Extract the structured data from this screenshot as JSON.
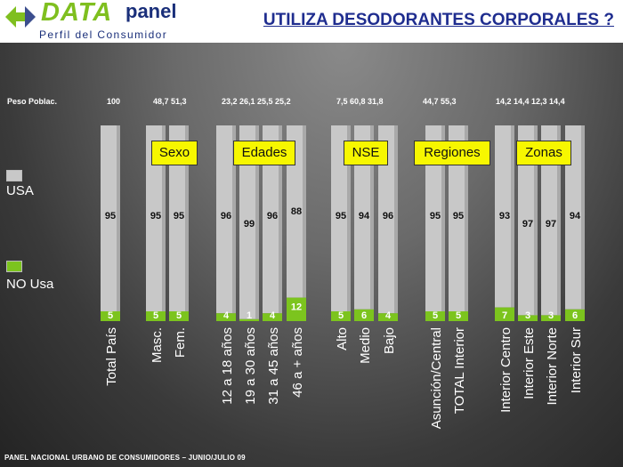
{
  "header": {
    "logo_data": "DATA",
    "logo_panel": "panel",
    "logo_sub": "Perfil del Consumidor",
    "title": "UTILIZA DESODORANTES CORPORALES ?"
  },
  "peso": {
    "label": "Peso Poblac.",
    "groups": [
      "100",
      "48,7 51,3",
      "23,2  26,1 25,5 25,2",
      "7,5  60,8 31,8",
      "44,7 55,3",
      "14,2 14,4 12,3 14,4"
    ]
  },
  "legend": {
    "usa": "USA",
    "no_usa": "NO Usa",
    "usa_color": "#c8c8c8",
    "no_usa_color": "#7cc41e"
  },
  "groups": [
    "Sexo",
    "Edades",
    "NSE",
    "Regiones",
    "Zonas"
  ],
  "footer": "PANEL NACIONAL URBANO DE CONSUMIDORES – JUNIO/JULIO 09",
  "chart_data": {
    "type": "bar",
    "stacked": true,
    "categories": [
      "Total País",
      "Masc.",
      "Fem.",
      "12 a 18 años",
      "19 a 30 años",
      "31 a 45 años",
      "46 a + años",
      "Alto",
      "Medio",
      "Bajo",
      "Asunción/Central",
      "TOTAL Interior",
      "Interior Centro",
      "Interior Este",
      "Interior Norte",
      "Interior Sur"
    ],
    "series": [
      {
        "name": "NO Usa",
        "values": [
          5,
          5,
          5,
          4,
          1,
          4,
          12,
          5,
          6,
          4,
          5,
          5,
          7,
          3,
          3,
          6
        ]
      },
      {
        "name": "USA",
        "values": [
          95,
          95,
          95,
          96,
          99,
          96,
          88,
          95,
          94,
          96,
          95,
          95,
          93,
          97,
          97,
          94
        ]
      }
    ],
    "ylim": [
      0,
      100
    ]
  }
}
